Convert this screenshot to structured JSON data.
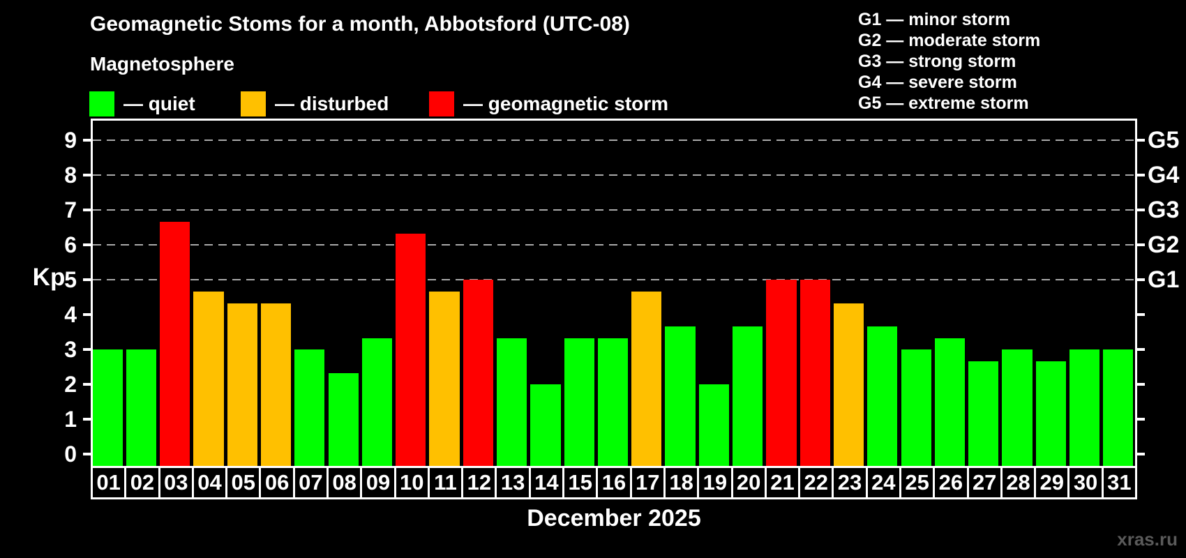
{
  "title": "Geomagnetic Stoms for a month, Abbotsford (UTC-08)",
  "legend": {
    "heading": "Magnetosphere",
    "items": [
      {
        "name": "quiet",
        "label": "— quiet",
        "color": "#00ff00"
      },
      {
        "name": "disturbed",
        "label": "— disturbed",
        "color": "#ffc000"
      },
      {
        "name": "storm",
        "label": "— geomagnetic storm",
        "color": "#ff0000"
      }
    ]
  },
  "storm_scale_legend": [
    "G1 — minor storm",
    "G2 — moderate storm",
    "G3 — strong storm",
    "G4 — severe storm",
    "G5 — extreme storm"
  ],
  "axis": {
    "y_label": "Kp",
    "y_ticks": [
      0,
      1,
      2,
      3,
      4,
      5,
      6,
      7,
      8,
      9
    ],
    "right_storm_labels": [
      {
        "label": "G1",
        "kp": 5
      },
      {
        "label": "G2",
        "kp": 6
      },
      {
        "label": "G3",
        "kp": 7
      },
      {
        "label": "G4",
        "kp": 8
      },
      {
        "label": "G5",
        "kp": 9
      }
    ],
    "x_label": "December 2025"
  },
  "watermark": "xras.ru",
  "chart_data": {
    "type": "bar",
    "title": "Geomagnetic Stoms for a month, Abbotsford (UTC-08)",
    "xlabel": "December 2025",
    "ylabel": "Kp",
    "ylim": [
      0,
      9.6
    ],
    "grid_kp": [
      5,
      6,
      7,
      8,
      9
    ],
    "legend_position": "top-left",
    "categories": [
      "01",
      "02",
      "03",
      "04",
      "05",
      "06",
      "07",
      "08",
      "09",
      "10",
      "11",
      "12",
      "13",
      "14",
      "15",
      "16",
      "17",
      "18",
      "19",
      "20",
      "21",
      "22",
      "23",
      "24",
      "25",
      "26",
      "27",
      "28",
      "29",
      "30",
      "31"
    ],
    "values": [
      3,
      3,
      6.67,
      4.67,
      4.33,
      4.33,
      3,
      2.33,
      3.33,
      6.33,
      4.67,
      5,
      3.33,
      2,
      3.33,
      3.33,
      4.67,
      3.67,
      2,
      3.67,
      5,
      5,
      4.33,
      3.67,
      3,
      3.33,
      2.67,
      3,
      2.67,
      3,
      3
    ],
    "statuses": [
      "quiet",
      "quiet",
      "storm",
      "disturbed",
      "disturbed",
      "disturbed",
      "quiet",
      "quiet",
      "quiet",
      "storm",
      "disturbed",
      "storm",
      "quiet",
      "quiet",
      "quiet",
      "quiet",
      "disturbed",
      "quiet",
      "quiet",
      "quiet",
      "storm",
      "storm",
      "disturbed",
      "quiet",
      "quiet",
      "quiet",
      "quiet",
      "quiet",
      "quiet",
      "quiet",
      "quiet"
    ],
    "status_colors": {
      "quiet": "#00ff00",
      "disturbed": "#ffc000",
      "storm": "#ff0000"
    }
  }
}
